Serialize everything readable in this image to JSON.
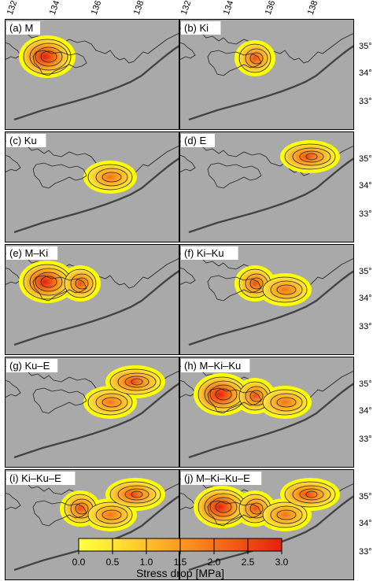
{
  "lon_ticks": [
    "132°",
    "134°",
    "136°",
    "138°"
  ],
  "lat_ticks": [
    "35°",
    "34°",
    "33°"
  ],
  "colorbar": {
    "title": "Stress drop [MPa]",
    "ticks": [
      "0.0",
      "0.5",
      "1.0",
      "1.5",
      "2.0",
      "2.5",
      "3.0"
    ],
    "colors": [
      "#ffff44",
      "#ffe633",
      "#ffc02a",
      "#ff9a22",
      "#f6721a",
      "#ee4a12",
      "#e62010"
    ]
  },
  "map_colors": {
    "sea": "#a9a9a9",
    "patch": "#ffff00",
    "land_line": "#222222"
  },
  "panels": [
    {
      "label": "(a) M",
      "patches": [
        "M"
      ]
    },
    {
      "label": "(b) Ki",
      "patches": [
        "Ki"
      ]
    },
    {
      "label": "(c) Ku",
      "patches": [
        "Ku"
      ]
    },
    {
      "label": "(d) E",
      "patches": [
        "E"
      ]
    },
    {
      "label": "(e) M–Ki",
      "patches": [
        "M",
        "Ki"
      ]
    },
    {
      "label": "(f) Ki–Ku",
      "patches": [
        "Ki",
        "Ku"
      ]
    },
    {
      "label": "(g) Ku–E",
      "patches": [
        "Ku",
        "E"
      ]
    },
    {
      "label": "(h) M–Ki–Ku",
      "patches": [
        "M",
        "Ki",
        "Ku"
      ]
    },
    {
      "label": "(i) Ki–Ku–E",
      "patches": [
        "Ki",
        "Ku",
        "E"
      ]
    },
    {
      "label": "(j) M–Ki–Ku–E",
      "patches": [
        "M",
        "Ki",
        "Ku",
        "E"
      ]
    }
  ]
}
